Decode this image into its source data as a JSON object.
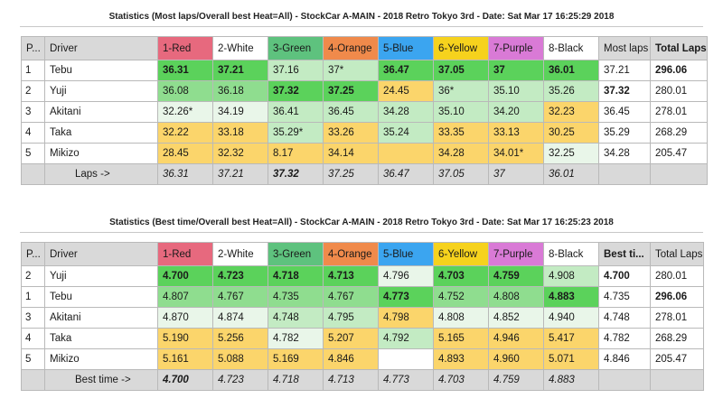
{
  "table1": {
    "title": "Statistics (Most laps/Overall best Heat=All) - StockCar A-MAIN - 2018 Retro Tokyo 3rd - Date: Sat Mar 17 16:25:29 2018",
    "headers": [
      "P...",
      "Driver",
      "1-Red",
      "2-White",
      "3-Green",
      "4-Orange",
      "5-Blue",
      "6-Yellow",
      "7-Purple",
      "8-Black",
      "Most laps",
      "Total Laps"
    ],
    "rows": [
      [
        "1",
        "Tebu",
        "36.31",
        "37.21",
        "37.16",
        "37*",
        "36.47",
        "37.05",
        "37",
        "36.01",
        "37.21",
        "296.06"
      ],
      [
        "2",
        "Yuji",
        "36.08",
        "36.18",
        "37.32",
        "37.25",
        "24.45",
        "36*",
        "35.10",
        "35.26",
        "37.32",
        "280.01"
      ],
      [
        "3",
        "Akitani",
        "32.26*",
        "34.19",
        "36.41",
        "36.45",
        "34.28",
        "35.10",
        "34.20",
        "32.23",
        "36.45",
        "278.01"
      ],
      [
        "4",
        "Taka",
        "32.22",
        "33.18",
        "35.29*",
        "33.26",
        "35.24",
        "33.35",
        "33.13",
        "30.25",
        "35.29",
        "268.29"
      ],
      [
        "5",
        "Mikizo",
        "28.45",
        "32.32",
        "8.17",
        "34.14",
        "",
        "34.28",
        "34.01*",
        "32.25",
        "34.28",
        "205.47"
      ]
    ],
    "footer": [
      "",
      "Laps ->",
      "36.31",
      "37.21",
      "37.32",
      "37.25",
      "36.47",
      "37.05",
      "37",
      "36.01",
      "",
      ""
    ]
  },
  "table2": {
    "title": "Statistics (Best time/Overall best Heat=All) - StockCar A-MAIN - 2018 Retro Tokyo 3rd - Date: Sat Mar 17 16:25:23 2018",
    "headers": [
      "P...",
      "Driver",
      "1-Red",
      "2-White",
      "3-Green",
      "4-Orange",
      "5-Blue",
      "6-Yellow",
      "7-Purple",
      "8-Black",
      "Best ti...",
      "Total Laps"
    ],
    "rows": [
      [
        "2",
        "Yuji",
        "4.700",
        "4.723",
        "4.718",
        "4.713",
        "4.796",
        "4.703",
        "4.759",
        "4.908",
        "4.700",
        "280.01"
      ],
      [
        "1",
        "Tebu",
        "4.807",
        "4.767",
        "4.735",
        "4.767",
        "4.773",
        "4.752",
        "4.808",
        "4.883",
        "4.735",
        "296.06"
      ],
      [
        "3",
        "Akitani",
        "4.870",
        "4.874",
        "4.748",
        "4.795",
        "4.798",
        "4.808",
        "4.852",
        "4.940",
        "4.748",
        "278.01"
      ],
      [
        "4",
        "Taka",
        "5.190",
        "5.256",
        "4.782",
        "5.207",
        "4.792",
        "5.165",
        "4.946",
        "5.417",
        "4.782",
        "268.29"
      ],
      [
        "5",
        "Mikizo",
        "5.161",
        "5.088",
        "5.169",
        "4.846",
        "",
        "4.893",
        "4.960",
        "5.071",
        "4.846",
        "205.47"
      ]
    ],
    "footer": [
      "",
      "Best time ->",
      "4.700",
      "4.723",
      "4.718",
      "4.713",
      "4.773",
      "4.703",
      "4.759",
      "4.883",
      "",
      ""
    ]
  },
  "colors": {
    "lane_red": "#e7697e",
    "lane_green": "#5ec27e",
    "lane_orange": "#f08a4b",
    "lane_blue": "#3ba5f0",
    "lane_yellow": "#f6d21d",
    "lane_purple": "#d97ad6",
    "best": "#5bd25b",
    "good": "#8fdd8f",
    "mid": "#c3ebc3",
    "slow": "#fbd56b",
    "footer": "#d9d9d9"
  }
}
